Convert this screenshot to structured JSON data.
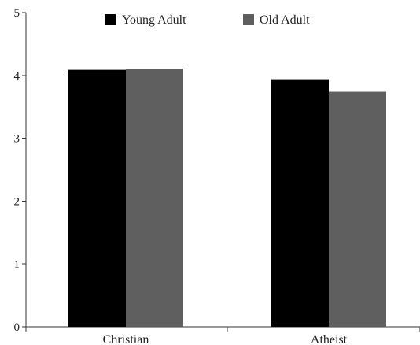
{
  "chart_data": {
    "type": "bar",
    "categories": [
      "Christian",
      "Atheist"
    ],
    "series": [
      {
        "name": "Young Adult",
        "color": "#000000",
        "values": [
          4.09,
          3.94
        ]
      },
      {
        "name": "Old Adult",
        "color": "#5f5f5f",
        "values": [
          4.11,
          3.74
        ]
      }
    ],
    "title": "",
    "xlabel": "",
    "ylabel": "",
    "ylim": [
      0,
      5
    ],
    "yticks": [
      "0",
      "1",
      "2",
      "3",
      "4",
      "5"
    ],
    "grid": false,
    "legend_position": "top-center"
  }
}
